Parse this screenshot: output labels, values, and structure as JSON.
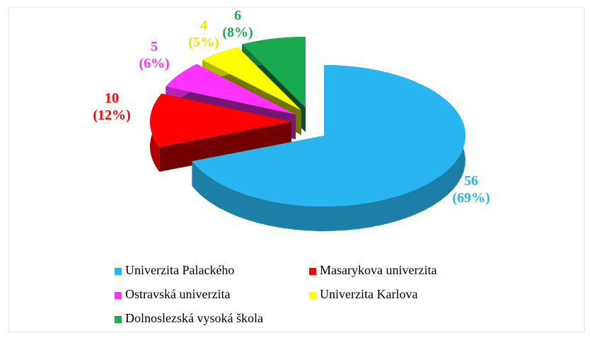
{
  "chart_data": {
    "type": "pie",
    "categories": [
      "Univerzita Palackého",
      "Masarykova univerzita",
      "Ostravská univerzita",
      "Univerzita Karlova",
      "Dolnoslezská vysoká škola"
    ],
    "values": [
      56,
      10,
      5,
      4,
      6
    ],
    "value_labels": [
      [
        "56",
        "(69%)"
      ],
      [
        "10",
        "(12%)"
      ],
      [
        "5",
        "(6%)"
      ],
      [
        "4",
        "(5%)"
      ],
      [
        "6",
        "(8%)"
      ]
    ],
    "colors": [
      "#29b6f0",
      "#ff0000",
      "#ff33ff",
      "#ffff00",
      "#1aaa50"
    ],
    "legend": "bottom"
  }
}
